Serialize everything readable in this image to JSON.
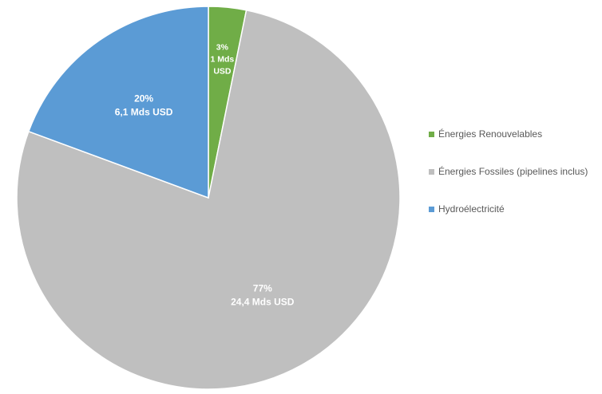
{
  "chart_data": {
    "type": "pie",
    "title": "",
    "start_angle_deg": 0,
    "direction": "clockwise",
    "slices": [
      {
        "name": "Énergies Renouvelables",
        "value": 1,
        "percent_label": "3%",
        "value_label_lines": [
          "1 Mds",
          "USD"
        ],
        "color": "#70ad47"
      },
      {
        "name": "Énergies Fossiles (pipelines inclus)",
        "value": 24.4,
        "percent_label": "77%",
        "value_label_lines": [
          "24,4 Mds USD"
        ],
        "color": "#bfbfbf"
      },
      {
        "name": "Hydroélectricité",
        "value": 6.1,
        "percent_label": "20%",
        "value_label_lines": [
          "6,1 Mds USD"
        ],
        "color": "#5b9bd5"
      }
    ],
    "legend_position": "right",
    "slice_label_color": "#ffffff",
    "slice_border_color": "#ffffff"
  }
}
